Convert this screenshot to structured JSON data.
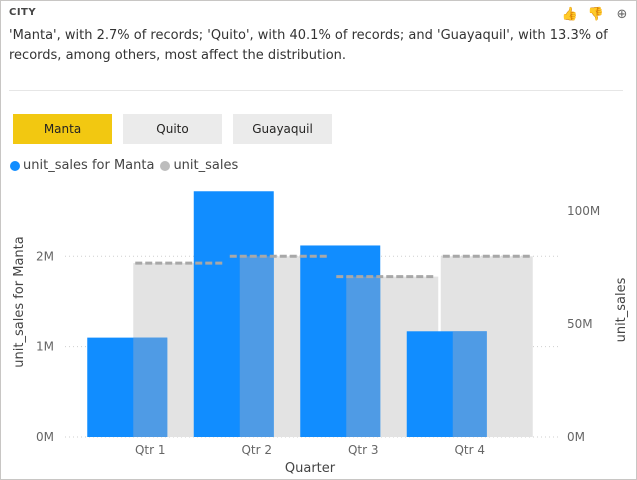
{
  "header": {
    "section": "CITY",
    "insight": "'Manta', with 2.7% of records; 'Quito', with 40.1% of records; and 'Guayaquil', with 13.3% of records, among others, most affect the distribution."
  },
  "actions": [
    {
      "name": "thumbs-up-icon",
      "glyph": "👍"
    },
    {
      "name": "thumbs-down-icon",
      "glyph": "👎"
    },
    {
      "name": "add-icon",
      "glyph": "⊕"
    }
  ],
  "filters": [
    {
      "label": "Manta",
      "active": true
    },
    {
      "label": "Quito",
      "active": false
    },
    {
      "label": "Guayaquil",
      "active": false
    }
  ],
  "legend": [
    {
      "label": "unit_sales for Manta",
      "color": "#118dff"
    },
    {
      "label": "unit_sales",
      "color": "#bdbdbd"
    }
  ],
  "chart_data": {
    "type": "bar",
    "xlabel": "Quarter",
    "ylabel_left": "unit_sales for Manta",
    "ylabel_right": "unit_sales",
    "categories": [
      "Qtr 1",
      "Qtr 2",
      "Qtr 3",
      "Qtr 4"
    ],
    "series": [
      {
        "name": "unit_sales for Manta",
        "axis": "left",
        "values": [
          1100000,
          2720000,
          2120000,
          1170000
        ],
        "color": "#118dff"
      },
      {
        "name": "unit_sales",
        "axis": "right",
        "values": [
          77000000,
          80000000,
          71000000,
          80000000
        ],
        "color": "#e3e3e3"
      }
    ],
    "left_axis": {
      "ylim": [
        0,
        2900000
      ],
      "ticks": [
        0,
        1000000,
        2000000
      ],
      "tick_labels": [
        "0M",
        "1M",
        "2M"
      ]
    },
    "right_axis": {
      "ylim": [
        0,
        116000000
      ],
      "ticks": [
        0,
        50000000,
        100000000
      ],
      "tick_labels": [
        "0M",
        "50M",
        "100M"
      ]
    },
    "grid": true,
    "legend_position": "top-left"
  }
}
